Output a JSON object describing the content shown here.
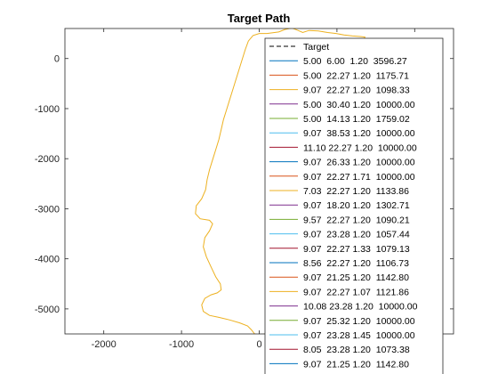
{
  "chart_data": {
    "type": "line",
    "title": "Target Path",
    "xlabel": "",
    "ylabel": "",
    "xlim": [
      -2500,
      2500
    ],
    "ylim": [
      -5500,
      600
    ],
    "x_ticks": [
      -2000,
      -1000,
      0,
      1000,
      2000
    ],
    "y_ticks": [
      0,
      -1000,
      -2000,
      -3000,
      -4000,
      -5000
    ],
    "grid": false,
    "legend_position": "top-right, overflowing bottom",
    "target": {
      "name": "Target",
      "color": "#000000",
      "dash": "dashed",
      "points": [
        [
          100,
          500
        ],
        [
          250,
          530
        ],
        [
          330,
          580
        ],
        [
          420,
          610
        ],
        [
          500,
          560
        ],
        [
          560,
          520
        ],
        [
          640,
          560
        ],
        [
          760,
          550
        ],
        [
          880,
          520
        ],
        [
          990,
          500
        ],
        [
          1090,
          470
        ],
        [
          1200,
          450
        ],
        [
          1300,
          440
        ],
        [
          1360,
          430
        ],
        [
          1310,
          300
        ],
        [
          1280,
          120
        ],
        [
          1300,
          -100
        ],
        [
          1280,
          -300
        ],
        [
          1250,
          -500
        ],
        [
          1280,
          -700
        ],
        [
          1300,
          -900
        ],
        [
          1320,
          -1100
        ],
        [
          1300,
          -1300
        ],
        [
          1280,
          -1600
        ],
        [
          1300,
          -1900
        ],
        [
          1320,
          -2200
        ],
        [
          1300,
          -2500
        ],
        [
          1280,
          -2800
        ],
        [
          1300,
          -3100
        ],
        [
          1320,
          -3400
        ],
        [
          1300,
          -3700
        ],
        [
          1280,
          -3950
        ],
        [
          1240,
          -4050
        ],
        [
          1150,
          -4050
        ],
        [
          1000,
          -4100
        ],
        [
          820,
          -4130
        ],
        [
          700,
          -4220
        ],
        [
          640,
          -4400
        ],
        [
          650,
          -4600
        ],
        [
          620,
          -4800
        ],
        [
          580,
          -5000
        ],
        [
          540,
          -5050
        ],
        [
          500,
          -4820
        ],
        [
          460,
          -4560
        ],
        [
          440,
          -4560
        ],
        [
          470,
          -4760
        ],
        [
          490,
          -4960
        ],
        [
          470,
          -5150
        ],
        [
          420,
          -5250
        ],
        [
          360,
          -5360
        ],
        [
          300,
          -5430
        ],
        [
          200,
          -5470
        ],
        [
          80,
          -5500
        ],
        [
          0,
          -5520
        ],
        [
          -60,
          -5500
        ],
        [
          -100,
          -5420
        ],
        [
          -150,
          -5340
        ],
        [
          -250,
          -5280
        ],
        [
          -380,
          -5220
        ],
        [
          -520,
          -5170
        ],
        [
          -640,
          -5130
        ],
        [
          -720,
          -5050
        ],
        [
          -740,
          -4920
        ],
        [
          -700,
          -4790
        ],
        [
          -620,
          -4720
        ],
        [
          -540,
          -4680
        ],
        [
          -490,
          -4620
        ],
        [
          -500,
          -4500
        ],
        [
          -560,
          -4360
        ],
        [
          -620,
          -4160
        ],
        [
          -680,
          -3960
        ],
        [
          -720,
          -3760
        ],
        [
          -700,
          -3580
        ],
        [
          -640,
          -3440
        ],
        [
          -600,
          -3300
        ],
        [
          -640,
          -3230
        ],
        [
          -760,
          -3200
        ],
        [
          -820,
          -3100
        ],
        [
          -810,
          -2940
        ],
        [
          -740,
          -2800
        ],
        [
          -690,
          -2620
        ],
        [
          -670,
          -2420
        ],
        [
          -640,
          -2220
        ],
        [
          -600,
          -2020
        ],
        [
          -560,
          -1820
        ],
        [
          -520,
          -1620
        ],
        [
          -490,
          -1420
        ],
        [
          -460,
          -1220
        ],
        [
          -420,
          -1020
        ],
        [
          -380,
          -820
        ],
        [
          -340,
          -620
        ],
        [
          -300,
          -420
        ],
        [
          -260,
          -220
        ],
        [
          -220,
          -20
        ],
        [
          -180,
          180
        ],
        [
          -140,
          350
        ],
        [
          -80,
          460
        ],
        [
          0,
          500
        ],
        [
          100,
          500
        ]
      ]
    },
    "series_color": "#EDB120",
    "legend": [
      {
        "label": "Target",
        "color": "#000000",
        "dash": "dashed"
      },
      {
        "label": "5.00  6.00  1.20  3596.27",
        "color": "#0072BD"
      },
      {
        "label": "5.00  22.27 1.20  1175.71",
        "color": "#D95319"
      },
      {
        "label": "9.07  22.27 1.20  1098.33",
        "color": "#EDB120"
      },
      {
        "label": "5.00  30.40 1.20  10000.00",
        "color": "#7E2F8E"
      },
      {
        "label": "5.00  14.13 1.20  1759.02",
        "color": "#77AC30"
      },
      {
        "label": "9.07  38.53 1.20  10000.00",
        "color": "#4DBEEE"
      },
      {
        "label": "11.10 22.27 1.20  10000.00",
        "color": "#A2142F"
      },
      {
        "label": "9.07  26.33 1.20  10000.00",
        "color": "#0072BD"
      },
      {
        "label": "9.07  22.27 1.71  10000.00",
        "color": "#D95319"
      },
      {
        "label": "7.03  22.27 1.20  1133.86",
        "color": "#EDB120"
      },
      {
        "label": "9.07  18.20 1.20  1302.71",
        "color": "#7E2F8E"
      },
      {
        "label": "9.57  22.27 1.20  1090.21",
        "color": "#77AC30"
      },
      {
        "label": "9.07  23.28 1.20  1057.44",
        "color": "#4DBEEE"
      },
      {
        "label": "9.07  22.27 1.33  1079.13",
        "color": "#A2142F"
      },
      {
        "label": "8.56  22.27 1.20  1106.73",
        "color": "#0072BD"
      },
      {
        "label": "9.07  21.25 1.20  1142.80",
        "color": "#D95319"
      },
      {
        "label": "9.07  22.27 1.07  1121.86",
        "color": "#EDB120"
      },
      {
        "label": "10.08 23.28 1.20  10000.00",
        "color": "#7E2F8E"
      },
      {
        "label": "9.07  25.32 1.20  10000.00",
        "color": "#77AC30"
      },
      {
        "label": "9.07  23.28 1.45  10000.00",
        "color": "#4DBEEE"
      },
      {
        "label": "8.05  23.28 1.20  1073.38",
        "color": "#A2142F"
      },
      {
        "label": "9.07  21.25 1.20  1142.80",
        "color": "#0072BD"
      }
    ]
  }
}
